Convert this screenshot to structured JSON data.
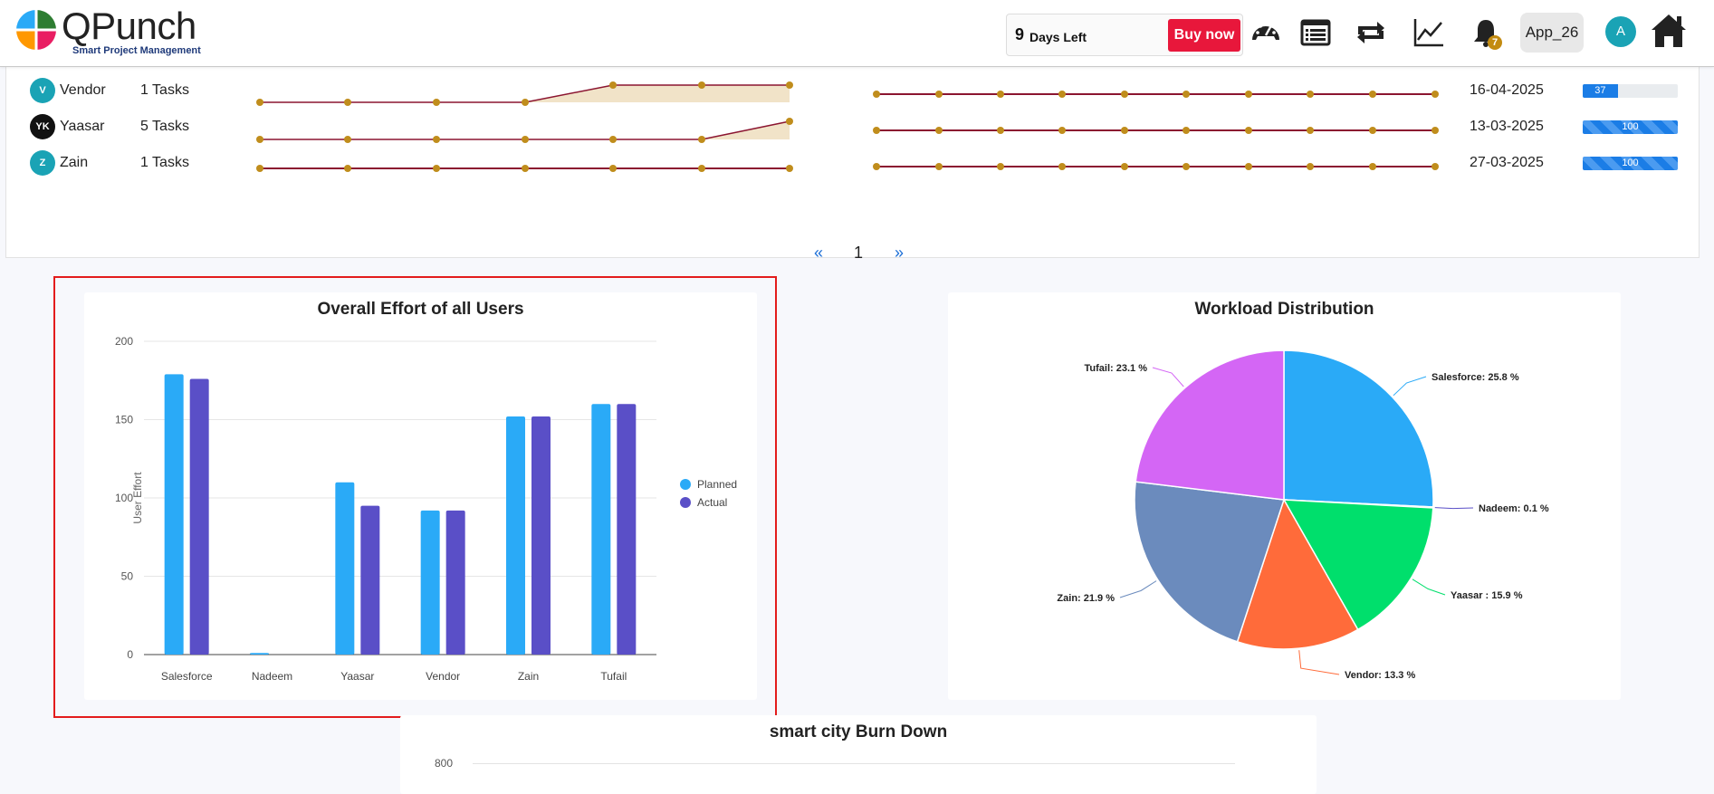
{
  "header": {
    "logo_name": "QPunch",
    "logo_tagline": "Smart Project Management",
    "trial_days": "9",
    "trial_text": "Days Left",
    "buy_now": "Buy now",
    "icons": [
      "dashboard-icon",
      "list-icon",
      "repeat-icon",
      "trend-icon",
      "bell-icon",
      "home-icon"
    ],
    "notification_count": "7",
    "app_label": "App_26",
    "avatar_letter": "A"
  },
  "users_table": {
    "rows": [
      {
        "initial": "V",
        "name": "Vendor",
        "tasks": "1 Tasks",
        "date": "16-04-2025",
        "progress": 37,
        "progress_label": "37",
        "avatar_color": "#1aa3b5"
      },
      {
        "initial": "YK",
        "name": "Yaasar",
        "tasks": "5 Tasks",
        "date": "13-03-2025",
        "progress": 100,
        "progress_label": "100",
        "avatar_color": "#111111"
      },
      {
        "initial": "Z",
        "name": "Zain",
        "tasks": "1 Tasks",
        "date": "27-03-2025",
        "progress": 100,
        "progress_label": "100",
        "avatar_color": "#1aa3b5"
      }
    ],
    "pagination": {
      "prev": "«",
      "page": "1",
      "next": "»"
    }
  },
  "effort_chart": {
    "title": "Overall Effort of all Users",
    "colors": {
      "Planned": "#2aaaf7",
      "Actual": "#5a4fc7"
    }
  },
  "workload_chart": {
    "title": "Workload Distribution",
    "labels": [
      "Salesforce: 25.8 %",
      "Nadeem: 0.1 %",
      "Yaasar : 15.9 %",
      "Vendor: 13.3 %",
      "Zain: 21.9 %",
      "Tufail: 23.1 %"
    ],
    "colors": [
      "#2aaaf7",
      "#5a4fc7",
      "#00df6c",
      "#ff6b3a",
      "#6b8bbd",
      "#d466f5"
    ]
  },
  "burndown": {
    "title": "smart city Burn Down",
    "first_tick": "800"
  },
  "chart_data": [
    {
      "type": "bar",
      "title": "Overall Effort of all Users",
      "xlabel": "",
      "ylabel": "User Effort",
      "categories": [
        "Salesforce",
        "Nadeem",
        "Yaasar",
        "Vendor",
        "Zain",
        "Tufail"
      ],
      "series": [
        {
          "name": "Planned",
          "values": [
            179,
            1,
            110,
            92,
            152,
            160
          ]
        },
        {
          "name": "Actual",
          "values": [
            176,
            0,
            95,
            92,
            152,
            160
          ]
        }
      ],
      "ylim": [
        0,
        200
      ],
      "yticks": [
        0,
        50,
        100,
        150,
        200
      ],
      "grid": true,
      "legend": "right"
    },
    {
      "type": "pie",
      "title": "Workload Distribution",
      "categories": [
        "Salesforce",
        "Nadeem",
        "Yaasar",
        "Vendor",
        "Zain",
        "Tufail"
      ],
      "values": [
        25.8,
        0.1,
        15.9,
        13.3,
        21.9,
        23.1
      ]
    }
  ]
}
